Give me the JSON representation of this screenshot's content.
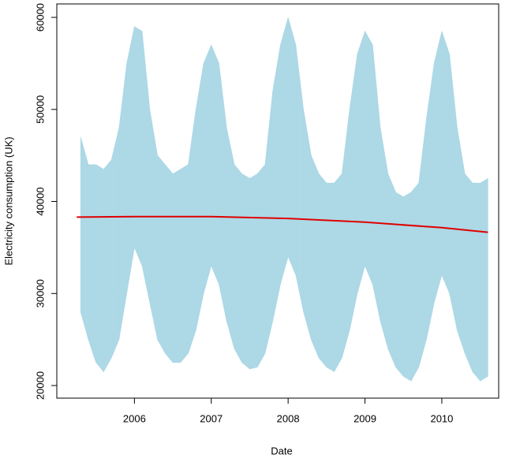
{
  "chart_data": {
    "type": "range",
    "x_label": "Date",
    "y_label": "Electricity consumption (UK)",
    "x": [
      2005.3,
      2005.4,
      2005.5,
      2005.6,
      2005.7,
      2005.8,
      2005.9,
      2006.0,
      2006.1,
      2006.2,
      2006.3,
      2006.4,
      2006.5,
      2006.6,
      2006.7,
      2006.8,
      2006.9,
      2007.0,
      2007.1,
      2007.2,
      2007.3,
      2007.4,
      2007.5,
      2007.6,
      2007.7,
      2007.8,
      2007.9,
      2008.0,
      2008.1,
      2008.2,
      2008.3,
      2008.4,
      2008.5,
      2008.6,
      2008.7,
      2008.8,
      2008.9,
      2009.0,
      2009.1,
      2009.2,
      2009.3,
      2009.4,
      2009.5,
      2009.6,
      2009.7,
      2009.8,
      2009.9,
      2010.0,
      2010.1,
      2010.2,
      2010.3,
      2010.4,
      2010.5,
      2010.6
    ],
    "high": [
      47000,
      44000,
      44000,
      43500,
      44500,
      48000,
      55000,
      59000,
      58500,
      50000,
      45000,
      44000,
      43000,
      43500,
      44000,
      50000,
      55000,
      57000,
      55000,
      48000,
      44000,
      43000,
      42500,
      43000,
      44000,
      52000,
      57000,
      60000,
      57000,
      50000,
      45000,
      43000,
      42000,
      42000,
      43000,
      50000,
      56000,
      58500,
      57000,
      48000,
      43000,
      41000,
      40500,
      41000,
      42000,
      49000,
      55000,
      58500,
      56000,
      48000,
      43000,
      42000,
      42000,
      42500
    ],
    "low": [
      28000,
      25000,
      22500,
      21500,
      23000,
      25000,
      30000,
      35000,
      33000,
      29000,
      25000,
      23500,
      22500,
      22500,
      23500,
      26000,
      30000,
      33000,
      31000,
      27000,
      24000,
      22500,
      21800,
      22000,
      23500,
      27000,
      31000,
      34000,
      32000,
      28000,
      25000,
      23000,
      22000,
      21500,
      23000,
      26000,
      30000,
      33000,
      31000,
      27000,
      24000,
      22000,
      21000,
      20500,
      22000,
      25000,
      29000,
      32000,
      30000,
      26000,
      23500,
      21500,
      20500,
      21000
    ],
    "color": "#add8e6",
    "trend": {
      "x": [
        2005.25,
        2006,
        2007,
        2008,
        2009,
        2010,
        2010.6
      ],
      "values": [
        38300,
        38350,
        38350,
        38150,
        37750,
        37150,
        36650
      ],
      "color": "#e00000"
    },
    "xlim": [
      2004.99,
      2010.74
    ],
    "xticks": [
      2006,
      2007,
      2008,
      2009,
      2010
    ],
    "ylim": [
      18630,
      61460
    ],
    "yticks": [
      20000,
      30000,
      40000,
      50000,
      60000
    ]
  }
}
